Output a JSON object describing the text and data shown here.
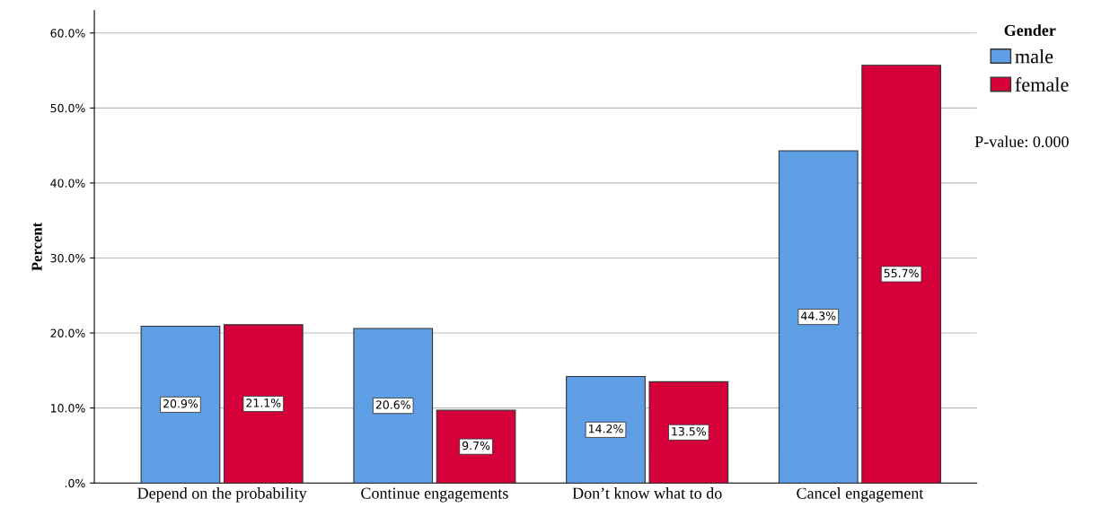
{
  "chart_data": {
    "type": "bar",
    "ylabel": "Percent",
    "legend_title": "Gender",
    "categories": [
      "Depend on the probability",
      "Continue engagements",
      "Don’t know what to do",
      "Cancel engagement"
    ],
    "series": [
      {
        "name": "male",
        "color": "#5e9ee4",
        "values": [
          20.9,
          20.6,
          14.2,
          44.3
        ],
        "value_labels": [
          "20.9%",
          "20.6%",
          "14.2%",
          "44.3%"
        ]
      },
      {
        "name": "female",
        "color": "#d5003a",
        "values": [
          21.1,
          9.7,
          13.5,
          55.7
        ],
        "value_labels": [
          "21.1%",
          "9.7%",
          "13.5%",
          "55.7%"
        ]
      }
    ],
    "ylim": [
      0,
      63
    ],
    "yticks": [
      {
        "value": 0,
        "label": ".0%"
      },
      {
        "value": 10,
        "label": "10.0%"
      },
      {
        "value": 20,
        "label": "20.0%"
      },
      {
        "value": 30,
        "label": "30.0%"
      },
      {
        "value": 40,
        "label": "40.0%"
      },
      {
        "value": 50,
        "label": "50.0%"
      },
      {
        "value": 60,
        "label": "60.0%"
      }
    ],
    "grid": "y",
    "legend": "top right",
    "annotations": [
      "P-value: 0.000"
    ]
  }
}
